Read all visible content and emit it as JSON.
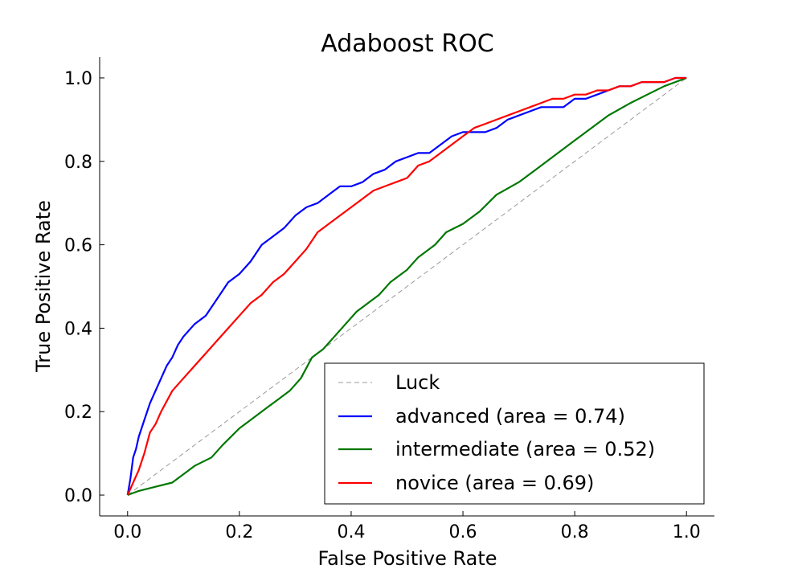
{
  "chart_data": {
    "type": "line",
    "title": "Adaboost ROC",
    "xlabel": "False Positive Rate",
    "ylabel": "True Positive Rate",
    "xlim": [
      -0.05,
      1.05
    ],
    "ylim": [
      -0.05,
      1.05
    ],
    "xticks": [
      0.0,
      0.2,
      0.4,
      0.6,
      0.8,
      1.0
    ],
    "yticks": [
      0.0,
      0.2,
      0.4,
      0.6,
      0.8,
      1.0
    ],
    "xtick_labels": [
      "0.0",
      "0.2",
      "0.4",
      "0.6",
      "0.8",
      "1.0"
    ],
    "ytick_labels": [
      "0.0",
      "0.2",
      "0.4",
      "0.6",
      "0.8",
      "1.0"
    ],
    "grid": false,
    "legend_position": "lower-right",
    "series": [
      {
        "name": "Luck",
        "color": "#999999",
        "style": "dashed",
        "x": [
          0.0,
          1.0
        ],
        "y": [
          0.0,
          1.0
        ]
      },
      {
        "name": "advanced (area = 0.74)",
        "color": "#0000ff",
        "style": "solid",
        "x": [
          0.0,
          0.005,
          0.01,
          0.015,
          0.02,
          0.03,
          0.04,
          0.05,
          0.06,
          0.07,
          0.08,
          0.09,
          0.1,
          0.12,
          0.14,
          0.16,
          0.18,
          0.2,
          0.22,
          0.24,
          0.26,
          0.28,
          0.3,
          0.32,
          0.34,
          0.36,
          0.38,
          0.4,
          0.42,
          0.44,
          0.46,
          0.48,
          0.5,
          0.52,
          0.54,
          0.56,
          0.58,
          0.6,
          0.62,
          0.64,
          0.66,
          0.68,
          0.7,
          0.72,
          0.74,
          0.76,
          0.78,
          0.8,
          0.82,
          0.84,
          0.86,
          0.88,
          0.9,
          0.92,
          0.94,
          0.96,
          0.98,
          1.0
        ],
        "y": [
          0.0,
          0.04,
          0.09,
          0.11,
          0.14,
          0.18,
          0.22,
          0.25,
          0.28,
          0.31,
          0.33,
          0.36,
          0.38,
          0.41,
          0.43,
          0.47,
          0.51,
          0.53,
          0.56,
          0.6,
          0.62,
          0.64,
          0.67,
          0.69,
          0.7,
          0.72,
          0.74,
          0.74,
          0.75,
          0.77,
          0.78,
          0.8,
          0.81,
          0.82,
          0.82,
          0.84,
          0.86,
          0.87,
          0.87,
          0.87,
          0.88,
          0.9,
          0.91,
          0.92,
          0.93,
          0.93,
          0.93,
          0.95,
          0.95,
          0.96,
          0.97,
          0.98,
          0.98,
          0.99,
          0.99,
          0.99,
          1.0,
          1.0
        ]
      },
      {
        "name": "intermediate (area = 0.52)",
        "color": "#007700",
        "style": "solid",
        "x": [
          0.0,
          0.02,
          0.05,
          0.08,
          0.1,
          0.12,
          0.15,
          0.17,
          0.2,
          0.22,
          0.25,
          0.27,
          0.29,
          0.31,
          0.33,
          0.35,
          0.37,
          0.39,
          0.41,
          0.43,
          0.45,
          0.47,
          0.5,
          0.52,
          0.55,
          0.57,
          0.6,
          0.63,
          0.66,
          0.7,
          0.73,
          0.76,
          0.8,
          0.83,
          0.86,
          0.9,
          0.93,
          0.96,
          0.98,
          1.0
        ],
        "y": [
          0.0,
          0.01,
          0.02,
          0.03,
          0.05,
          0.07,
          0.09,
          0.12,
          0.16,
          0.18,
          0.21,
          0.23,
          0.25,
          0.28,
          0.33,
          0.35,
          0.38,
          0.41,
          0.44,
          0.46,
          0.48,
          0.51,
          0.54,
          0.57,
          0.6,
          0.63,
          0.65,
          0.68,
          0.72,
          0.75,
          0.78,
          0.81,
          0.85,
          0.88,
          0.91,
          0.94,
          0.96,
          0.98,
          0.99,
          1.0
        ]
      },
      {
        "name": "novice (area = 0.69)",
        "color": "#ff0000",
        "style": "solid",
        "x": [
          0.0,
          0.01,
          0.02,
          0.03,
          0.04,
          0.05,
          0.06,
          0.08,
          0.1,
          0.12,
          0.14,
          0.16,
          0.18,
          0.2,
          0.22,
          0.24,
          0.26,
          0.28,
          0.3,
          0.32,
          0.34,
          0.36,
          0.38,
          0.4,
          0.42,
          0.44,
          0.46,
          0.48,
          0.5,
          0.52,
          0.54,
          0.56,
          0.58,
          0.6,
          0.62,
          0.64,
          0.66,
          0.68,
          0.7,
          0.72,
          0.74,
          0.76,
          0.78,
          0.8,
          0.82,
          0.84,
          0.86,
          0.88,
          0.9,
          0.92,
          0.94,
          0.96,
          0.98,
          1.0
        ],
        "y": [
          0.0,
          0.03,
          0.06,
          0.1,
          0.15,
          0.17,
          0.2,
          0.25,
          0.28,
          0.31,
          0.34,
          0.37,
          0.4,
          0.43,
          0.46,
          0.48,
          0.51,
          0.53,
          0.56,
          0.59,
          0.63,
          0.65,
          0.67,
          0.69,
          0.71,
          0.73,
          0.74,
          0.75,
          0.76,
          0.79,
          0.8,
          0.82,
          0.84,
          0.86,
          0.88,
          0.89,
          0.9,
          0.91,
          0.92,
          0.93,
          0.94,
          0.95,
          0.95,
          0.96,
          0.96,
          0.97,
          0.97,
          0.98,
          0.98,
          0.99,
          0.99,
          0.99,
          1.0,
          1.0
        ]
      }
    ]
  }
}
